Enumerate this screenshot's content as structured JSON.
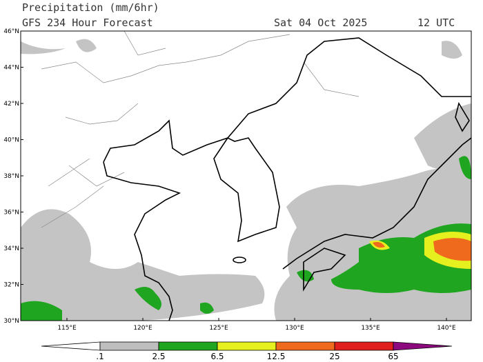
{
  "header": {
    "title": "Precipitation (mm/6hr)",
    "subtitle": "GFS 234 Hour Forecast",
    "date": "Sat 04 Oct 2025",
    "time": "12 UTC"
  },
  "map": {
    "lat_labels": [
      "46°N",
      "44°N",
      "42°N",
      "40°N",
      "38°N",
      "36°N",
      "34°N",
      "32°N",
      "30°N"
    ],
    "lon_labels": [
      "115°E",
      "120°E",
      "125°E",
      "130°E",
      "135°E",
      "140°E"
    ]
  },
  "colorbar": {
    "labels": [
      ".1",
      "2.5",
      "6.5",
      "12.5",
      "25",
      "65"
    ],
    "colors": [
      "#ffffff",
      "#bebebe",
      "#1fa51f",
      "#e6f01e",
      "#f06a1e",
      "#e01e1e",
      "#8c0a7e"
    ]
  }
}
